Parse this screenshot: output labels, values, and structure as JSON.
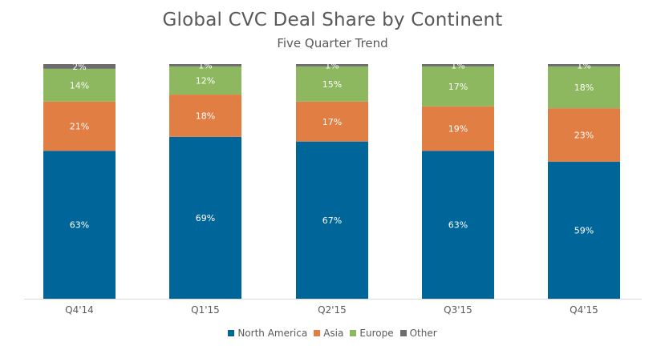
{
  "chart_data": {
    "type": "bar",
    "stacked": true,
    "title": "Global CVC Deal Share by Continent",
    "subtitle": "Five Quarter Trend",
    "categories": [
      "Q4'14",
      "Q1'15",
      "Q2'15",
      "Q3'15",
      "Q4'15"
    ],
    "series": [
      {
        "name": "North America",
        "color": "#006699",
        "values": [
          63,
          69,
          67,
          63,
          59
        ],
        "labels": [
          "63%",
          "69%",
          "67%",
          "63%",
          "59%"
        ]
      },
      {
        "name": "Asia",
        "color": "#E07E44",
        "values": [
          21,
          18,
          17,
          19,
          23
        ],
        "labels": [
          "21%",
          "18%",
          "17%",
          "19%",
          "23%"
        ]
      },
      {
        "name": "Europe",
        "color": "#8DB85F",
        "values": [
          14,
          12,
          15,
          17,
          18
        ],
        "labels": [
          "14%",
          "12%",
          "15%",
          "17%",
          "18%"
        ]
      },
      {
        "name": "Other",
        "color": "#6D6D6D",
        "values": [
          2,
          1,
          1,
          1,
          1
        ],
        "labels": [
          "2%",
          "1%",
          "1%",
          "1%",
          "1%"
        ]
      }
    ],
    "ylim": [
      0,
      100
    ],
    "grid": false,
    "legend_position": "bottom"
  }
}
